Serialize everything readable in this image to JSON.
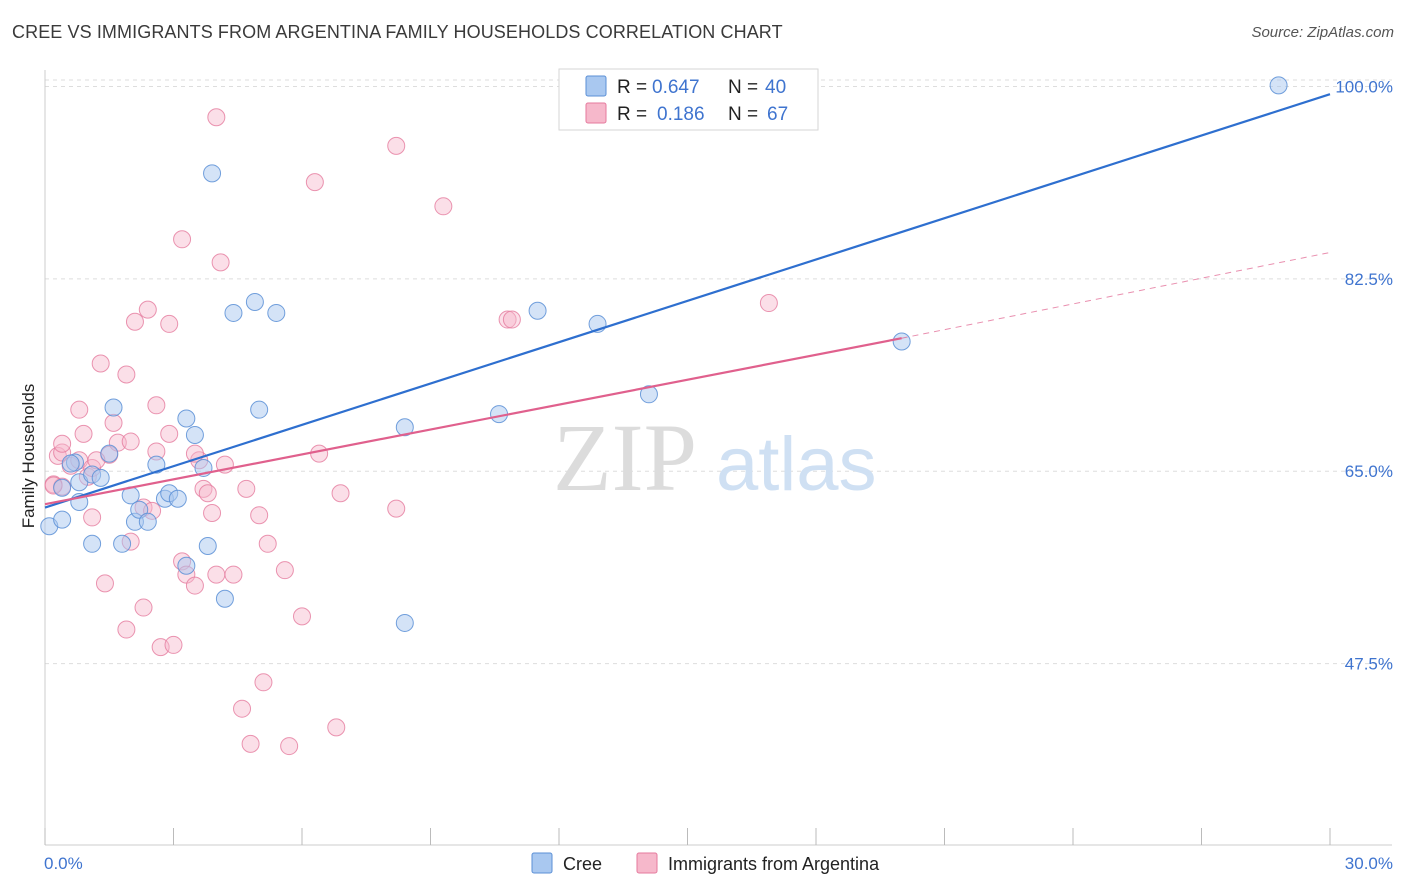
{
  "title": "CREE VS IMMIGRANTS FROM ARGENTINA FAMILY HOUSEHOLDS CORRELATION CHART",
  "source": "Source: ZipAtlas.com",
  "watermark": {
    "zip": "ZIP",
    "atlas": "atlas"
  },
  "colors": {
    "cree_fill": "#a9c8f0",
    "cree_stroke": "#5b8fd6",
    "cree_line": "#2e6fcf",
    "arg_fill": "#f6b8cb",
    "arg_stroke": "#e57a9e",
    "arg_line": "#e0608d",
    "tick_text": "#3f74cf",
    "grid": "#dddddd"
  },
  "legend": {
    "rows": [
      {
        "r_label": "R =",
        "r_value": "0.647",
        "n_label": "N =",
        "n_value": "40"
      },
      {
        "r_label": "R =",
        "r_value": "0.186",
        "n_label": "N =",
        "n_value": "67"
      }
    ]
  },
  "chart_data": {
    "type": "scatter",
    "title": "CREE VS IMMIGRANTS FROM ARGENTINA FAMILY HOUSEHOLDS CORRELATION CHART",
    "xlabel": "",
    "ylabel": "Family Households",
    "xlim": [
      0,
      30
    ],
    "ylim": [
      31,
      101.5
    ],
    "x_tick_labels": [
      "0.0%",
      "30.0%"
    ],
    "y_ticks": [
      47.5,
      65.0,
      82.5,
      100.0
    ],
    "y_tick_labels": [
      "47.5%",
      "65.0%",
      "82.5%",
      "100.0%"
    ],
    "grid": true,
    "legend_position": "top-center",
    "series": [
      {
        "name": "Cree",
        "r": 0.647,
        "n": 40,
        "trend": {
          "x0": 0,
          "y0": 61.7,
          "x1": 30,
          "y1": 99.3
        },
        "points": [
          [
            0.1,
            60.0
          ],
          [
            0.4,
            63.5
          ],
          [
            0.4,
            60.6
          ],
          [
            0.7,
            65.8
          ],
          [
            0.8,
            64.0
          ],
          [
            0.8,
            62.2
          ],
          [
            1.1,
            64.7
          ],
          [
            1.1,
            58.4
          ],
          [
            1.3,
            64.4
          ],
          [
            1.5,
            66.6
          ],
          [
            1.6,
            70.8
          ],
          [
            1.8,
            58.4
          ],
          [
            2.0,
            62.8
          ],
          [
            2.1,
            60.4
          ],
          [
            2.2,
            61.5
          ],
          [
            2.4,
            60.4
          ],
          [
            2.6,
            65.6
          ],
          [
            2.8,
            62.5
          ],
          [
            2.9,
            63.0
          ],
          [
            3.1,
            62.5
          ],
          [
            3.3,
            69.8
          ],
          [
            3.3,
            56.4
          ],
          [
            3.5,
            68.3
          ],
          [
            3.7,
            65.3
          ],
          [
            3.8,
            58.2
          ],
          [
            3.9,
            92.1
          ],
          [
            4.2,
            53.4
          ],
          [
            4.4,
            79.4
          ],
          [
            4.9,
            80.4
          ],
          [
            5.0,
            70.6
          ],
          [
            5.4,
            79.4
          ],
          [
            8.4,
            51.2
          ],
          [
            8.4,
            69.0
          ],
          [
            10.6,
            70.2
          ],
          [
            11.5,
            79.6
          ],
          [
            12.9,
            78.4
          ],
          [
            14.1,
            72.0
          ],
          [
            20.0,
            76.8
          ],
          [
            28.8,
            100.1
          ],
          [
            0.6,
            65.7
          ]
        ]
      },
      {
        "name": "Immigrants from Argentina",
        "r": 0.186,
        "n": 67,
        "trend": {
          "x0": 0,
          "y0": 62.0,
          "x1": 20.0,
          "y1": 77.1,
          "x_dash_end": 30,
          "y_dash_end": 84.9
        },
        "points": [
          [
            0.2,
            63.8
          ],
          [
            0.3,
            66.4
          ],
          [
            0.4,
            66.7
          ],
          [
            0.4,
            63.6
          ],
          [
            0.4,
            67.5
          ],
          [
            0.6,
            65.5
          ],
          [
            0.8,
            66.0
          ],
          [
            0.8,
            70.6
          ],
          [
            0.9,
            68.4
          ],
          [
            1.0,
            64.5
          ],
          [
            1.1,
            65.3
          ],
          [
            1.1,
            60.8
          ],
          [
            1.3,
            74.8
          ],
          [
            1.4,
            54.8
          ],
          [
            1.5,
            66.5
          ],
          [
            1.6,
            69.4
          ],
          [
            1.7,
            67.6
          ],
          [
            1.9,
            73.8
          ],
          [
            1.9,
            50.6
          ],
          [
            2.0,
            58.6
          ],
          [
            2.0,
            67.7
          ],
          [
            2.1,
            78.6
          ],
          [
            2.3,
            61.7
          ],
          [
            2.3,
            52.6
          ],
          [
            2.4,
            79.7
          ],
          [
            2.5,
            61.4
          ],
          [
            2.6,
            66.8
          ],
          [
            2.6,
            71.0
          ],
          [
            2.7,
            49.0
          ],
          [
            2.9,
            68.4
          ],
          [
            2.9,
            78.4
          ],
          [
            3.0,
            49.2
          ],
          [
            3.2,
            86.1
          ],
          [
            3.2,
            56.8
          ],
          [
            3.3,
            55.6
          ],
          [
            3.5,
            54.6
          ],
          [
            3.6,
            66.0
          ],
          [
            3.7,
            63.4
          ],
          [
            3.8,
            63.0
          ],
          [
            3.9,
            61.2
          ],
          [
            4.0,
            55.6
          ],
          [
            4.0,
            97.2
          ],
          [
            4.1,
            84.0
          ],
          [
            4.2,
            65.6
          ],
          [
            4.4,
            55.6
          ],
          [
            4.6,
            43.4
          ],
          [
            4.7,
            63.4
          ],
          [
            4.8,
            40.2
          ],
          [
            5.0,
            61.0
          ],
          [
            5.1,
            45.8
          ],
          [
            5.2,
            58.4
          ],
          [
            5.6,
            56.0
          ],
          [
            5.7,
            40.0
          ],
          [
            6.0,
            51.8
          ],
          [
            6.3,
            91.3
          ],
          [
            6.4,
            66.6
          ],
          [
            6.8,
            41.7
          ],
          [
            6.9,
            63.0
          ],
          [
            8.2,
            61.6
          ],
          [
            8.2,
            94.6
          ],
          [
            9.3,
            89.1
          ],
          [
            10.8,
            78.8
          ],
          [
            10.9,
            78.8
          ],
          [
            16.9,
            80.3
          ],
          [
            0.2,
            63.7
          ],
          [
            1.2,
            66.0
          ],
          [
            3.5,
            66.6
          ]
        ]
      }
    ]
  },
  "bottom_legend": {
    "cree": "Cree",
    "argentina": "Immigrants from Argentina"
  }
}
